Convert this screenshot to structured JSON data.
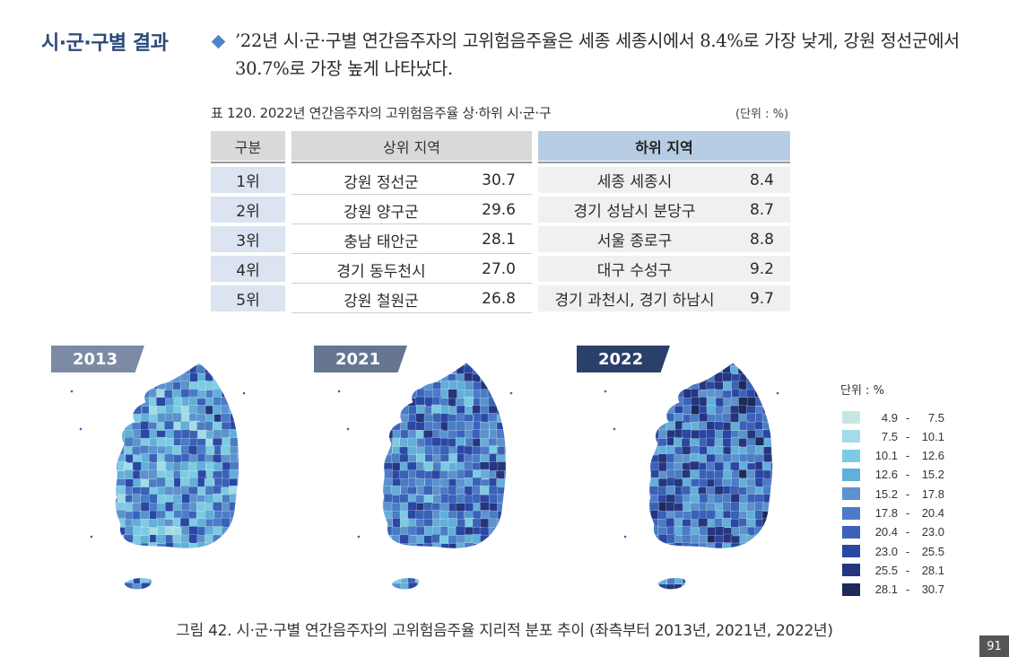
{
  "section_title": "시·군·구별 결과",
  "summary": "’22년 시·군·구별 연간음주자의 고위험음주율은 세종 세종시에서 8.4%로 가장 낮게, 강원 정선군에서 30.7%로 가장 높게 나타났다.",
  "table": {
    "caption": "표 120.  2022년 연간음주자의 고위험음주율 상·하위 시·군·구",
    "unit": "(단위 : %)",
    "headers": {
      "rank": "구분",
      "top": "상위 지역",
      "bottom": "하위 지역"
    },
    "rows": [
      {
        "rank": "1위",
        "top_name": "강원 정선군",
        "top_value": "30.7",
        "bottom_name": "세종 세종시",
        "bottom_value": "8.4"
      },
      {
        "rank": "2위",
        "top_name": "강원 양구군",
        "top_value": "29.6",
        "bottom_name": "경기 성남시 분당구",
        "bottom_value": "8.7"
      },
      {
        "rank": "3위",
        "top_name": "충남 태안군",
        "top_value": "28.1",
        "bottom_name": "서울 종로구",
        "bottom_value": "8.8"
      },
      {
        "rank": "4위",
        "top_name": "경기 동두천시",
        "top_value": "27.0",
        "bottom_name": "대구 수성구",
        "bottom_value": "9.2"
      },
      {
        "rank": "5위",
        "top_name": "강원 철원군",
        "top_value": "26.8",
        "bottom_name": "경기 과천시, 경기 하남시",
        "bottom_value": "9.7"
      }
    ]
  },
  "maps": [
    {
      "year": "2013"
    },
    {
      "year": "2021"
    },
    {
      "year": "2022"
    }
  ],
  "legend": {
    "title": "단위 : %",
    "items": [
      {
        "low": "4.9",
        "high": "7.5",
        "color": "#c7e6e2"
      },
      {
        "low": "7.5",
        "high": "10.1",
        "color": "#a3dbe6"
      },
      {
        "low": "10.1",
        "high": "12.6",
        "color": "#7ccbe2"
      },
      {
        "low": "12.6",
        "high": "15.2",
        "color": "#62afd9"
      },
      {
        "low": "15.2",
        "high": "17.8",
        "color": "#5b93cc"
      },
      {
        "low": "17.8",
        "high": "20.4",
        "color": "#4b7cc6"
      },
      {
        "low": "20.4",
        "high": "23.0",
        "color": "#3a62b8"
      },
      {
        "low": "23.0",
        "high": "25.5",
        "color": "#2a47a3"
      },
      {
        "low": "25.5",
        "high": "28.1",
        "color": "#25357f"
      },
      {
        "low": "28.1",
        "high": "30.7",
        "color": "#1d2a5a"
      }
    ]
  },
  "figure_caption": "그림 42.  시·군·구별 연간음주자의 고위험음주율 지리적 분포 추이 (좌측부터 2013년, 2021년, 2022년)",
  "page_number": "91"
}
